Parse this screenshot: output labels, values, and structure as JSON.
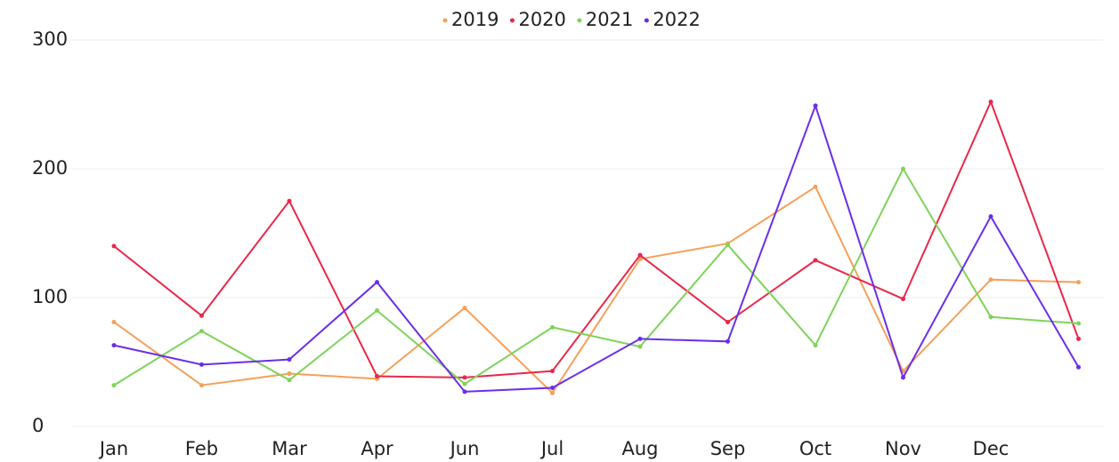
{
  "chart_data": {
    "type": "line",
    "categories": [
      "Jan",
      "Feb",
      "Mar",
      "Apr",
      "Jun",
      "Jul",
      "Aug",
      "Sep",
      "Oct",
      "Nov",
      "Dec",
      null
    ],
    "series": [
      {
        "name": "2019",
        "color": "#f5a05a",
        "values": [
          81,
          32,
          41,
          37,
          92,
          26,
          130,
          142,
          186,
          43,
          114,
          112
        ]
      },
      {
        "name": "2020",
        "color": "#e8284a",
        "values": [
          140,
          86,
          175,
          39,
          38,
          43,
          133,
          81,
          129,
          99,
          252,
          68
        ]
      },
      {
        "name": "2021",
        "color": "#7fd35a",
        "values": [
          32,
          74,
          36,
          90,
          33,
          77,
          62,
          141,
          63,
          200,
          85,
          80
        ]
      },
      {
        "name": "2022",
        "color": "#6a2ee8",
        "values": [
          63,
          48,
          52,
          112,
          27,
          30,
          68,
          66,
          249,
          38,
          163,
          46
        ]
      }
    ],
    "ylim": [
      0,
      300
    ],
    "yticks": [
      0,
      100,
      200,
      300
    ],
    "grid": true,
    "legend": "top"
  }
}
